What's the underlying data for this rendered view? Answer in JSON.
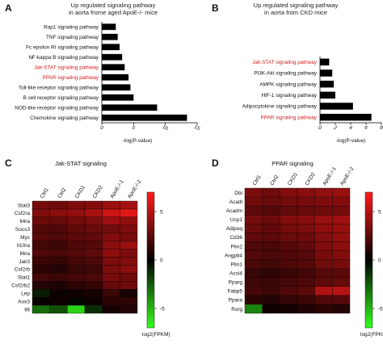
{
  "panels": {
    "A": {
      "label": "A",
      "title_lines": [
        "Up regulated signaling pathway",
        "in aorta frome aged ApoE-/- mice"
      ]
    },
    "B": {
      "label": "B",
      "title_lines": [
        "Up regulated signaling pathway",
        "in aorta from CKD mice"
      ]
    },
    "C": {
      "label": "C"
    },
    "D": {
      "label": "D"
    }
  },
  "highlight_color": "#d22020",
  "chart_data": [
    {
      "id": "A",
      "type": "bar",
      "orientation": "horizontal",
      "xlabel": "-log(P-value)",
      "xlim": [
        0,
        15
      ],
      "xticks": [
        0,
        5,
        10,
        15
      ],
      "categories": [
        "Rap1 signaling pathway",
        "TNF signaling pathway",
        "Fc epsilon RI signaling pathway",
        "NF-kappa B signaling pathway",
        "Jak-STAT signaling pathway",
        "PPAR signaling pathway",
        "Toll-like receptor signaling pathway",
        "B cell receptor signaling pathway",
        "NOD-like receptor signaling pathway",
        "Chemokine signaling pathway"
      ],
      "highlight": [
        false,
        false,
        false,
        false,
        true,
        true,
        false,
        false,
        false,
        false
      ],
      "values": [
        2.2,
        2.5,
        2.8,
        3.2,
        3.6,
        4.2,
        4.5,
        5.0,
        8.7,
        13.4
      ]
    },
    {
      "id": "B",
      "type": "bar",
      "orientation": "horizontal",
      "xlabel": "-log(P-value)",
      "xlim": [
        0,
        8
      ],
      "xticks": [
        0,
        2,
        4,
        6,
        8
      ],
      "categories": [
        "Jak-STAT signaling pathway",
        "PI3K-Akt signaling pathway",
        "AMPK signaling pathway",
        "HIF-1 signaling pathway",
        "Adipocytokine signaling pathway",
        "PPAR signaling pathway"
      ],
      "highlight": [
        true,
        false,
        false,
        false,
        false,
        true
      ],
      "values": [
        1.2,
        1.6,
        1.8,
        2.0,
        4.3,
        6.7
      ]
    },
    {
      "id": "C",
      "type": "heatmap",
      "title": "Jak-STAT signaling",
      "columns": [
        "Ctrl1",
        "Ctrl2",
        "CKD1",
        "CKD2",
        "ApoE-/-1",
        "ApoE-/-2"
      ],
      "rows": [
        "Stat3",
        "Csf2ra",
        "Il4ra",
        "Socs3",
        "Myc",
        "Il10ra",
        "Il6ra",
        "Jak3",
        "Csf2rb",
        "Stat1",
        "Csf2rb2",
        "Lep",
        "Aox3",
        "Il6"
      ],
      "values": [
        [
          3.2,
          3.0,
          3.5,
          3.6,
          4.2,
          4.5
        ],
        [
          3.5,
          3.8,
          4.0,
          4.6,
          5.6,
          6.2
        ],
        [
          3.0,
          2.8,
          3.2,
          3.4,
          4.4,
          4.0
        ],
        [
          2.3,
          2.2,
          2.7,
          2.9,
          3.1,
          3.4
        ],
        [
          2.4,
          2.2,
          2.5,
          2.7,
          3.6,
          3.3
        ],
        [
          1.8,
          1.6,
          2.2,
          2.4,
          3.8,
          4.2
        ],
        [
          2.2,
          2.0,
          2.3,
          2.6,
          3.9,
          3.4
        ],
        [
          1.6,
          1.4,
          1.9,
          2.1,
          3.4,
          3.6
        ],
        [
          1.2,
          1.0,
          1.5,
          1.7,
          3.4,
          3.8
        ],
        [
          1.8,
          1.6,
          1.9,
          2.1,
          3.3,
          3.0
        ],
        [
          1.0,
          0.8,
          1.2,
          1.4,
          2.8,
          3.0
        ],
        [
          -0.8,
          0.3,
          0.4,
          0.6,
          1.6,
          0.6
        ],
        [
          0.2,
          0.4,
          -0.2,
          0.3,
          1.2,
          1.3
        ],
        [
          -3.0,
          -2.2,
          -5.8,
          -1.2,
          0.6,
          1.0
        ]
      ],
      "colorbar": {
        "ticks": [
          5,
          0,
          -5
        ],
        "range": [
          -7,
          7
        ],
        "label": "log2(FPKM)"
      }
    },
    {
      "id": "D",
      "type": "heatmap",
      "title": "PPAR signaling",
      "columns": [
        "Ctrl1",
        "Ctrl2",
        "CKD1",
        "CKD2",
        "ApoE-/-1",
        "ApoE-/-2"
      ],
      "rows": [
        "Dbi",
        "Acadl",
        "Acadm",
        "Ucp1",
        "Adipoq",
        "Cd36",
        "Plin2",
        "Angptl4",
        "Plin1",
        "Acsl4",
        "Pparg",
        "Fabp5",
        "Ppara",
        "Rxrg"
      ],
      "values": [
        [
          3.4,
          3.0,
          3.6,
          3.8,
          4.0,
          4.2
        ],
        [
          3.1,
          2.9,
          3.2,
          3.3,
          3.5,
          3.6
        ],
        [
          2.6,
          2.4,
          2.7,
          2.9,
          3.1,
          3.2
        ],
        [
          3.2,
          3.0,
          3.6,
          3.8,
          4.2,
          4.4
        ],
        [
          3.0,
          2.7,
          3.2,
          3.4,
          3.9,
          4.1
        ],
        [
          2.7,
          2.5,
          2.9,
          3.0,
          3.6,
          4.0
        ],
        [
          2.2,
          2.0,
          2.4,
          2.6,
          3.5,
          3.8
        ],
        [
          2.3,
          2.1,
          2.2,
          2.4,
          3.3,
          3.6
        ],
        [
          2.0,
          1.8,
          2.1,
          2.3,
          3.1,
          3.3
        ],
        [
          1.5,
          1.3,
          1.6,
          1.8,
          2.4,
          2.5
        ],
        [
          1.7,
          1.6,
          1.9,
          2.1,
          2.6,
          2.8
        ],
        [
          1.9,
          1.6,
          2.2,
          2.5,
          4.8,
          5.0
        ],
        [
          1.2,
          1.0,
          1.4,
          1.6,
          2.2,
          2.4
        ],
        [
          -3.6,
          0.4,
          0.5,
          0.8,
          1.2,
          1.0
        ]
      ],
      "colorbar": {
        "ticks": [
          5,
          0,
          -5
        ],
        "range": [
          -7,
          7
        ],
        "label": "log2(FPKM)"
      }
    }
  ]
}
